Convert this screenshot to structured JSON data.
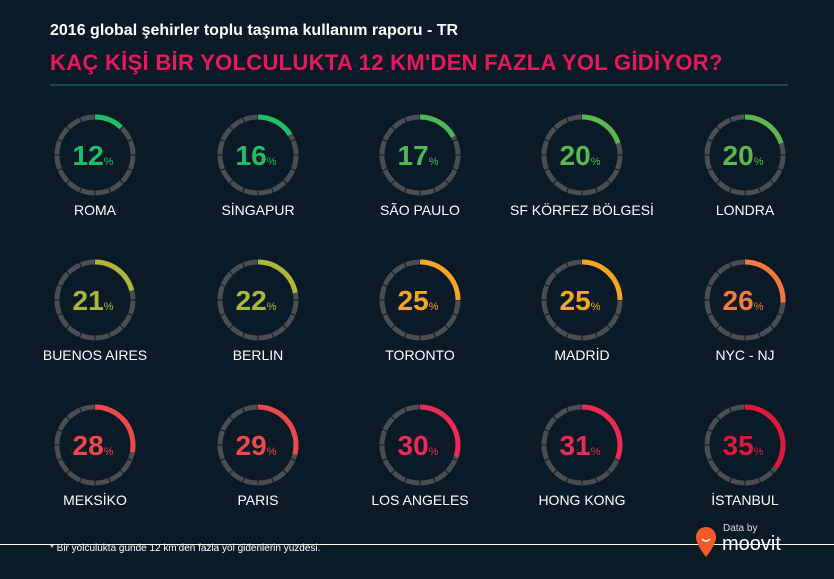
{
  "header": {
    "subtitle": "2016 global şehirler toplu taşıma kullanım raporu - TR",
    "title": "KAÇ KİŞİ BİR YOLCULUKTA 12 KM'DEN FAZLA YOL GİDİYOR?"
  },
  "chart_data": {
    "type": "gauge",
    "title": "KAÇ KİŞİ BİR YOLCULUKTA 12 KM'DEN FAZLA YOL GİDİYOR?",
    "unit": "%",
    "items": [
      {
        "city": "ROMA",
        "value": 12,
        "color": "#1fbf6a"
      },
      {
        "city": "SİNGAPUR",
        "value": 16,
        "color": "#1fbf6a"
      },
      {
        "city": "SÃO PAULO",
        "value": 17,
        "color": "#4cb857"
      },
      {
        "city": "SF KÖRFEZ BÖLGESİ",
        "value": 20,
        "color": "#5ab84e"
      },
      {
        "city": "LONDRA",
        "value": 20,
        "color": "#5ab84e"
      },
      {
        "city": "BUENOS AIRES",
        "value": 21,
        "color": "#aeb63a"
      },
      {
        "city": "BERLIN",
        "value": 22,
        "color": "#aeb63a"
      },
      {
        "city": "TORONTO",
        "value": 25,
        "color": "#f5a623"
      },
      {
        "city": "MADRİD",
        "value": 25,
        "color": "#f5a623"
      },
      {
        "city": "NYC - NJ",
        "value": 26,
        "color": "#f47a3a"
      },
      {
        "city": "MEKSİKO",
        "value": 28,
        "color": "#f04848"
      },
      {
        "city": "PARIS",
        "value": 29,
        "color": "#f04848"
      },
      {
        "city": "LOS ANGELES",
        "value": 30,
        "color": "#ec2a55"
      },
      {
        "city": "HONG KONG",
        "value": 31,
        "color": "#ec2a55"
      },
      {
        "city": "İSTANBUL",
        "value": 35,
        "color": "#e0193a"
      }
    ]
  },
  "footer": {
    "note": "* Bir yolculukta günde 12 km'den fazla yol gidenlerin yüzdesi.",
    "data_by": "Data by",
    "brand": "moovit"
  }
}
